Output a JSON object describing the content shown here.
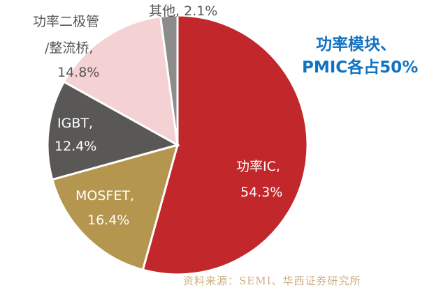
{
  "chart_data": {
    "type": "pie",
    "start": "top, clockwise",
    "slices": [
      {
        "name": "功率IC",
        "value": 54.3,
        "label": "功率IC,",
        "value_label": "54.3%",
        "color": "#C1272B"
      },
      {
        "name": "MOSFET",
        "value": 16.4,
        "label": "MOSFET,",
        "value_label": "16.4%",
        "color": "#B5964F"
      },
      {
        "name": "IGBT",
        "value": 12.4,
        "label": "IGBT,",
        "value_label": "12.4%",
        "color": "#5A5857"
      },
      {
        "name": "功率二极管/整流桥",
        "label": "功率二极管",
        "label2": "/整流桥,",
        "value": 14.8,
        "value_label": "14.8%",
        "color": "#F4D1D2"
      },
      {
        "name": "其他",
        "value": 2.1,
        "label": "其他, 2.1%",
        "color": "#8C8C8C"
      }
    ],
    "annotation": [
      "功率模块、",
      "PMIC各占50%"
    ],
    "annotation_color": "#1172C2",
    "source": "资料来源：SEMI、华西证券研究所"
  }
}
